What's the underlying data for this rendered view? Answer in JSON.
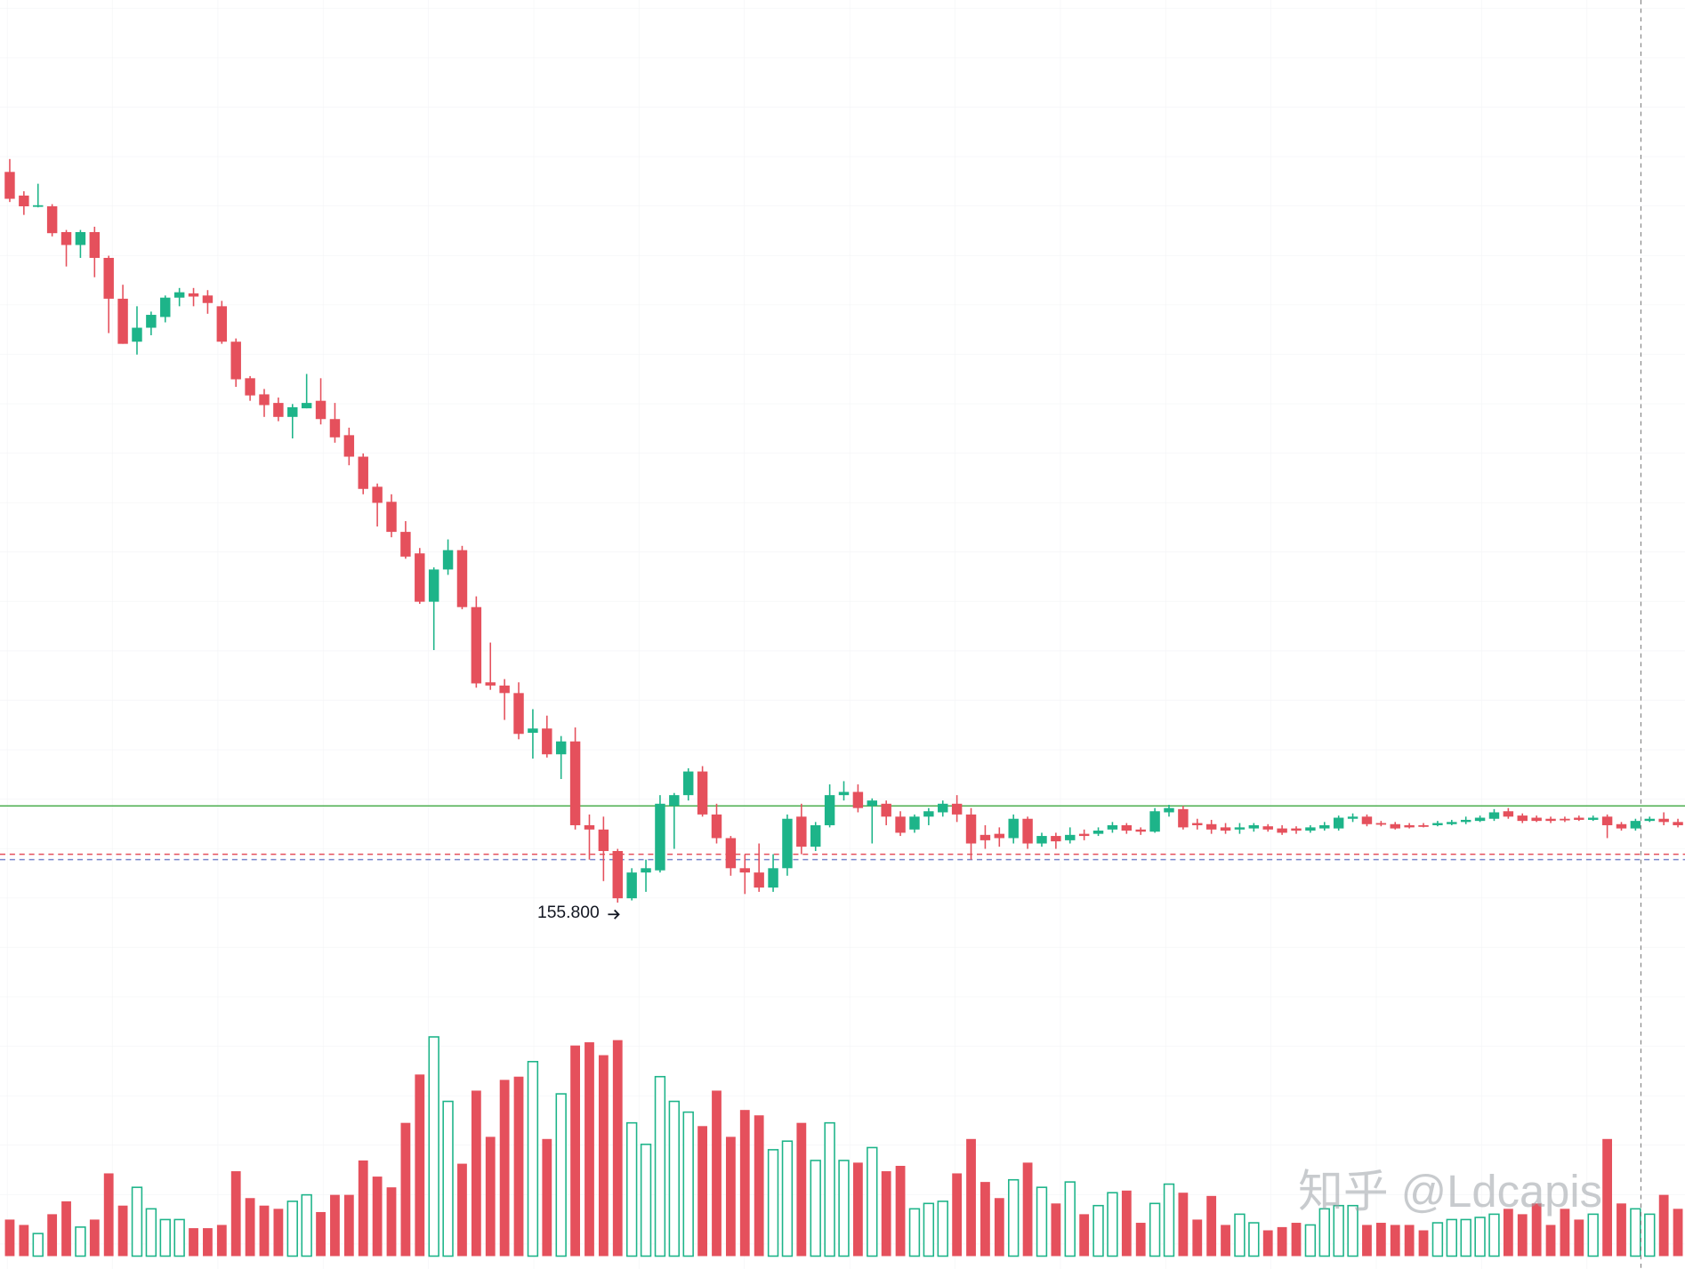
{
  "chart_data": {
    "type": "candlestick",
    "up_color": "#1db489",
    "down_color": "#e5505c",
    "ylim": [
      150.8,
      239.8
    ],
    "volume_ylim": [
      0,
      230
    ],
    "candles": [
      [
        223.8,
        225.0,
        221.0,
        221.3
      ],
      [
        221.6,
        222.0,
        219.8,
        220.6
      ],
      [
        220.6,
        222.7,
        220.5,
        220.7
      ],
      [
        220.6,
        220.8,
        217.8,
        218.1
      ],
      [
        218.2,
        218.4,
        215.0,
        217.0
      ],
      [
        217.0,
        218.4,
        215.8,
        218.2
      ],
      [
        218.2,
        218.7,
        214.0,
        215.8
      ],
      [
        215.8,
        216.0,
        208.8,
        212.0
      ],
      [
        212.0,
        213.3,
        207.8,
        207.8
      ],
      [
        208.0,
        211.3,
        206.8,
        209.3
      ],
      [
        209.3,
        210.8,
        208.6,
        210.5
      ],
      [
        210.3,
        212.3,
        209.8,
        212.1
      ],
      [
        212.1,
        213.0,
        211.3,
        212.6
      ],
      [
        212.5,
        213.0,
        211.3,
        212.2
      ],
      [
        212.3,
        212.8,
        210.6,
        211.6
      ],
      [
        211.3,
        211.8,
        207.8,
        208.0
      ],
      [
        208.0,
        208.3,
        203.8,
        204.5
      ],
      [
        204.6,
        204.8,
        202.5,
        203.0
      ],
      [
        203.1,
        203.6,
        201.0,
        202.1
      ],
      [
        202.3,
        202.8,
        200.6,
        201.0
      ],
      [
        201.0,
        202.2,
        199.0,
        201.9
      ],
      [
        201.8,
        205.0,
        201.8,
        202.3
      ],
      [
        202.5,
        204.6,
        200.3,
        200.8
      ],
      [
        200.8,
        202.3,
        198.6,
        199.1
      ],
      [
        199.3,
        200.0,
        196.5,
        197.3
      ],
      [
        197.3,
        197.6,
        193.8,
        194.3
      ],
      [
        194.5,
        194.8,
        190.8,
        193.0
      ],
      [
        193.1,
        193.8,
        189.8,
        190.3
      ],
      [
        190.3,
        191.3,
        187.8,
        188.0
      ],
      [
        188.3,
        188.8,
        183.6,
        183.8
      ],
      [
        183.8,
        187.0,
        179.3,
        186.8
      ],
      [
        186.8,
        189.6,
        186.3,
        188.6
      ],
      [
        188.6,
        189.0,
        183.1,
        183.3
      ],
      [
        183.3,
        184.3,
        175.8,
        176.2
      ],
      [
        176.3,
        180.0,
        175.6,
        176.0
      ],
      [
        176.0,
        176.6,
        172.8,
        175.3
      ],
      [
        175.3,
        176.3,
        171.0,
        171.5
      ],
      [
        171.6,
        173.8,
        169.2,
        172.0
      ],
      [
        172.0,
        173.2,
        169.3,
        169.6
      ],
      [
        169.6,
        171.3,
        167.3,
        170.8
      ],
      [
        170.8,
        172.1,
        162.6,
        163.0
      ],
      [
        163.0,
        164.0,
        159.8,
        162.6
      ],
      [
        162.6,
        163.8,
        157.8,
        160.6
      ],
      [
        160.6,
        160.8,
        155.8,
        156.2
      ],
      [
        156.2,
        159.0,
        156.0,
        158.6
      ],
      [
        158.6,
        159.8,
        156.8,
        159.0
      ],
      [
        158.8,
        165.8,
        158.6,
        165.0
      ],
      [
        164.8,
        166.0,
        160.8,
        165.8
      ],
      [
        165.8,
        168.3,
        165.3,
        168.0
      ],
      [
        168.0,
        168.5,
        163.8,
        164.0
      ],
      [
        164.0,
        165.0,
        161.3,
        161.8
      ],
      [
        161.8,
        162.0,
        158.3,
        159.0
      ],
      [
        159.0,
        160.3,
        156.6,
        158.6
      ],
      [
        158.6,
        161.3,
        156.8,
        157.2
      ],
      [
        157.2,
        160.3,
        156.8,
        159.0
      ],
      [
        159.0,
        164.0,
        158.3,
        163.6
      ],
      [
        163.8,
        165.0,
        160.3,
        161.0
      ],
      [
        161.0,
        163.3,
        160.6,
        163.0
      ],
      [
        163.0,
        166.8,
        162.8,
        165.8
      ],
      [
        165.8,
        167.1,
        165.3,
        166.1
      ],
      [
        166.1,
        166.8,
        164.2,
        164.6
      ],
      [
        164.8,
        165.5,
        161.3,
        165.3
      ],
      [
        165.0,
        165.3,
        163.0,
        163.8
      ],
      [
        163.8,
        164.3,
        162.0,
        162.3
      ],
      [
        162.6,
        164.0,
        162.3,
        163.8
      ],
      [
        163.8,
        164.6,
        163.0,
        164.3
      ],
      [
        164.2,
        165.3,
        163.8,
        165.0
      ],
      [
        165.0,
        165.8,
        163.3,
        164.0
      ],
      [
        164.0,
        164.6,
        159.8,
        161.3
      ],
      [
        162.1,
        163.0,
        160.8,
        161.6
      ],
      [
        162.2,
        162.8,
        161.0,
        161.8
      ],
      [
        161.8,
        164.0,
        161.3,
        163.6
      ],
      [
        163.6,
        163.8,
        160.8,
        161.3
      ],
      [
        161.3,
        162.3,
        161.0,
        162.0
      ],
      [
        162.0,
        162.3,
        160.8,
        161.5
      ],
      [
        161.6,
        162.8,
        161.3,
        162.1
      ],
      [
        162.2,
        162.6,
        161.6,
        162.0
      ],
      [
        162.2,
        162.8,
        162.0,
        162.5
      ],
      [
        162.6,
        163.3,
        162.3,
        163.0
      ],
      [
        163.0,
        163.2,
        162.2,
        162.5
      ],
      [
        162.6,
        162.8,
        162.1,
        162.4
      ],
      [
        162.4,
        164.6,
        162.3,
        164.3
      ],
      [
        164.2,
        164.9,
        163.8,
        164.6
      ],
      [
        164.5,
        164.8,
        162.6,
        162.8
      ],
      [
        163.2,
        163.6,
        162.6,
        163.0
      ],
      [
        163.1,
        163.5,
        162.2,
        162.6
      ],
      [
        162.8,
        163.2,
        162.2,
        162.5
      ],
      [
        162.6,
        163.2,
        162.2,
        162.8
      ],
      [
        162.7,
        163.2,
        162.4,
        163.0
      ],
      [
        162.9,
        163.1,
        162.4,
        162.6
      ],
      [
        162.7,
        163.0,
        162.1,
        162.3
      ],
      [
        162.7,
        162.9,
        162.2,
        162.5
      ],
      [
        162.5,
        163.0,
        162.3,
        162.8
      ],
      [
        162.7,
        163.3,
        162.5,
        163.0
      ],
      [
        162.7,
        163.9,
        162.5,
        163.7
      ],
      [
        163.6,
        164.1,
        163.3,
        163.8
      ],
      [
        163.8,
        164.0,
        162.9,
        163.1
      ],
      [
        163.2,
        163.4,
        162.9,
        163.1
      ],
      [
        163.1,
        163.3,
        162.6,
        162.7
      ],
      [
        163.0,
        163.2,
        162.7,
        162.8
      ],
      [
        163.0,
        163.2,
        162.8,
        162.9
      ],
      [
        163.0,
        163.4,
        162.9,
        163.2
      ],
      [
        163.1,
        163.5,
        163.0,
        163.3
      ],
      [
        163.3,
        163.8,
        163.1,
        163.5
      ],
      [
        163.4,
        163.9,
        163.3,
        163.7
      ],
      [
        163.6,
        164.5,
        163.4,
        164.2
      ],
      [
        164.3,
        164.6,
        163.6,
        163.8
      ],
      [
        163.9,
        164.1,
        163.2,
        163.4
      ],
      [
        163.7,
        163.9,
        163.3,
        163.4
      ],
      [
        163.6,
        163.8,
        163.2,
        163.4
      ],
      [
        163.6,
        163.8,
        163.3,
        163.5
      ],
      [
        163.7,
        163.9,
        163.4,
        163.5
      ],
      [
        163.5,
        163.9,
        163.4,
        163.7
      ],
      [
        163.8,
        164.0,
        161.8,
        163.0
      ],
      [
        163.1,
        163.3,
        162.5,
        162.7
      ],
      [
        162.7,
        163.6,
        162.5,
        163.4
      ],
      [
        163.4,
        163.8,
        163.3,
        163.6
      ],
      [
        163.6,
        164.2,
        163.0,
        163.3
      ],
      [
        163.3,
        163.6,
        162.8,
        163.0
      ]
    ],
    "volume": [
      34,
      29,
      21,
      39,
      51,
      27,
      34,
      77,
      47,
      64,
      44,
      34,
      34,
      26,
      26,
      29,
      79,
      54,
      47,
      44,
      51,
      57,
      41,
      57,
      57,
      89,
      74,
      64,
      124,
      169,
      204,
      144,
      86,
      154,
      111,
      164,
      167,
      181,
      109,
      151,
      196,
      199,
      187,
      201,
      124,
      104,
      167,
      144,
      134,
      121,
      154,
      111,
      136,
      131,
      99,
      107,
      124,
      89,
      124,
      89,
      87,
      101,
      79,
      84,
      44,
      49,
      51,
      77,
      109,
      69,
      54,
      71,
      87,
      64,
      49,
      69,
      39,
      47,
      59,
      61,
      31,
      49,
      67,
      59,
      34,
      56,
      29,
      39,
      31,
      24,
      27,
      31,
      29,
      44,
      47,
      47,
      29,
      31,
      29,
      29,
      24,
      31,
      34,
      34,
      36,
      39,
      44,
      39,
      49,
      29,
      44,
      34,
      39,
      109,
      49,
      44,
      39,
      57,
      44
    ],
    "price_lines": [
      {
        "value": 164.8,
        "color": "#4caf50",
        "style": "solid"
      },
      {
        "value": 160.3,
        "color": "#e5505c",
        "style": "dashed"
      },
      {
        "value": 159.8,
        "color": "#7986cb",
        "style": "dashed"
      }
    ],
    "low_label": {
      "value": 155.8,
      "label": "155.800"
    },
    "watermark": "知乎 @Ldcapis"
  }
}
